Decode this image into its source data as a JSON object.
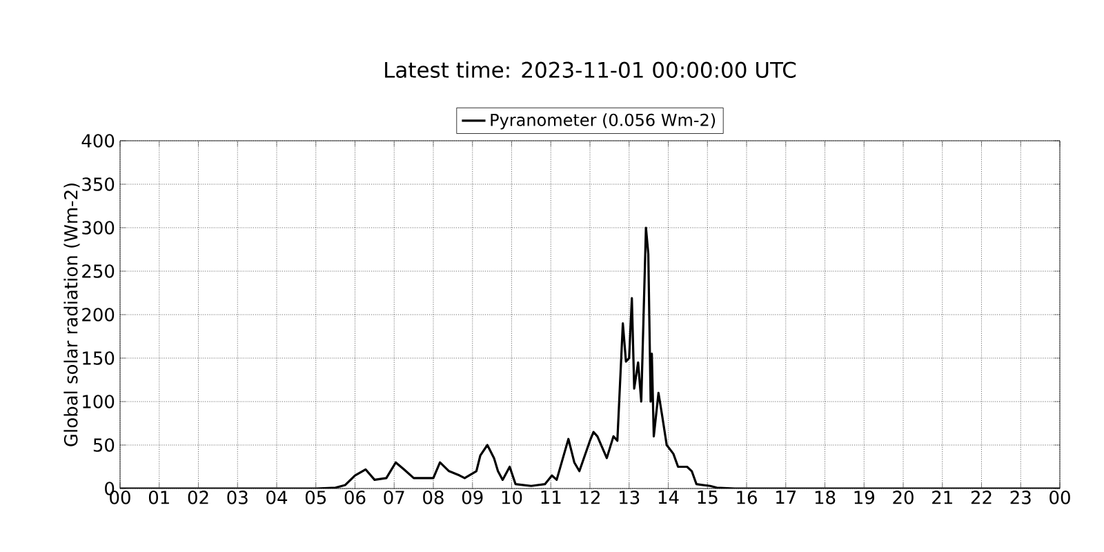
{
  "chart_data": {
    "type": "line",
    "title": "Latest time: 2023-11-01 00:00:00 UTC",
    "ylabel": "Global solar radiation (Wm-2)",
    "x": [
      0,
      5.0,
      5.5,
      5.75,
      6.0,
      6.27,
      6.5,
      6.8,
      7.04,
      7.25,
      7.5,
      8.0,
      8.17,
      8.4,
      8.67,
      8.8,
      9.1,
      9.2,
      9.38,
      9.55,
      9.65,
      9.77,
      9.95,
      10.1,
      10.5,
      10.85,
      11.03,
      11.15,
      11.45,
      11.6,
      11.73,
      12.0,
      12.09,
      12.19,
      12.43,
      12.6,
      12.7,
      12.84,
      12.92,
      13.0,
      13.07,
      13.13,
      13.23,
      13.31,
      13.43,
      13.49,
      13.55,
      13.58,
      13.63,
      13.75,
      13.84,
      13.96,
      14.13,
      14.25,
      14.48,
      14.6,
      14.72,
      15.07,
      15.24,
      15.7,
      24
    ],
    "series": [
      {
        "name": "Pyranometer (0.056 Wm-2)",
        "color": "#000000",
        "values": [
          0,
          0,
          1,
          4,
          15,
          22,
          10,
          12,
          30,
          22,
          12,
          12,
          30,
          20,
          15,
          12,
          20,
          38,
          50,
          35,
          20,
          10,
          25,
          5,
          3,
          5,
          15,
          10,
          57,
          30,
          20,
          55,
          65,
          60,
          35,
          60,
          55,
          190,
          146,
          150,
          219,
          115,
          145,
          100,
          300,
          270,
          100,
          155,
          60,
          110,
          85,
          50,
          40,
          25,
          25,
          20,
          5,
          3,
          1,
          0,
          0
        ]
      }
    ],
    "xlim": [
      0,
      24
    ],
    "xticks": [
      {
        "value": 0,
        "label": "00"
      },
      {
        "value": 1,
        "label": "01"
      },
      {
        "value": 2,
        "label": "02"
      },
      {
        "value": 3,
        "label": "03"
      },
      {
        "value": 4,
        "label": "04"
      },
      {
        "value": 5,
        "label": "05"
      },
      {
        "value": 6,
        "label": "06"
      },
      {
        "value": 7,
        "label": "07"
      },
      {
        "value": 8,
        "label": "08"
      },
      {
        "value": 9,
        "label": "09"
      },
      {
        "value": 10,
        "label": "10"
      },
      {
        "value": 11,
        "label": "11"
      },
      {
        "value": 12,
        "label": "12"
      },
      {
        "value": 13,
        "label": "13"
      },
      {
        "value": 14,
        "label": "14"
      },
      {
        "value": 15,
        "label": "15"
      },
      {
        "value": 16,
        "label": "16"
      },
      {
        "value": 17,
        "label": "17"
      },
      {
        "value": 18,
        "label": "18"
      },
      {
        "value": 19,
        "label": "19"
      },
      {
        "value": 20,
        "label": "20"
      },
      {
        "value": 21,
        "label": "21"
      },
      {
        "value": 22,
        "label": "22"
      },
      {
        "value": 23,
        "label": "23"
      },
      {
        "value": 24,
        "label": "00"
      }
    ],
    "ylim": [
      0,
      400
    ],
    "yticks": [
      0,
      50,
      100,
      150,
      200,
      250,
      300,
      350,
      400
    ],
    "grid": true,
    "legend": "top",
    "marker": "none",
    "line_style": "solid"
  }
}
